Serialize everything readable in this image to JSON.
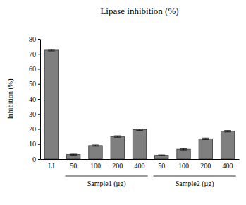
{
  "chart_data": {
    "type": "bar",
    "title": "Lipase inhibition (%)",
    "y_label": "Inhibition (%)",
    "categories": [
      "LI",
      "50",
      "100",
      "200",
      "400",
      "50",
      "100",
      "200",
      "400"
    ],
    "groups": [
      null,
      "Sample1 (µg)",
      "Sample1 (µg)",
      "Sample1 (µg)",
      "Sample1 (µg)",
      "Sample2 (µg)",
      "Sample2 (µg)",
      "Sample2 (µg)",
      "Sample2 (µg)"
    ],
    "values": [
      72.5,
      3,
      9,
      15,
      19.5,
      2.5,
      6.5,
      13.5,
      18.5
    ],
    "errors": [
      0.5,
      0.3,
      0.4,
      0.5,
      0.5,
      0.3,
      0.4,
      0.5,
      0.5
    ],
    "color": "#7f7f7f",
    "ylim": [
      0,
      80
    ],
    "yticks": [
      0,
      10,
      20,
      30,
      40,
      50,
      60,
      70,
      80
    ],
    "grid": false
  }
}
